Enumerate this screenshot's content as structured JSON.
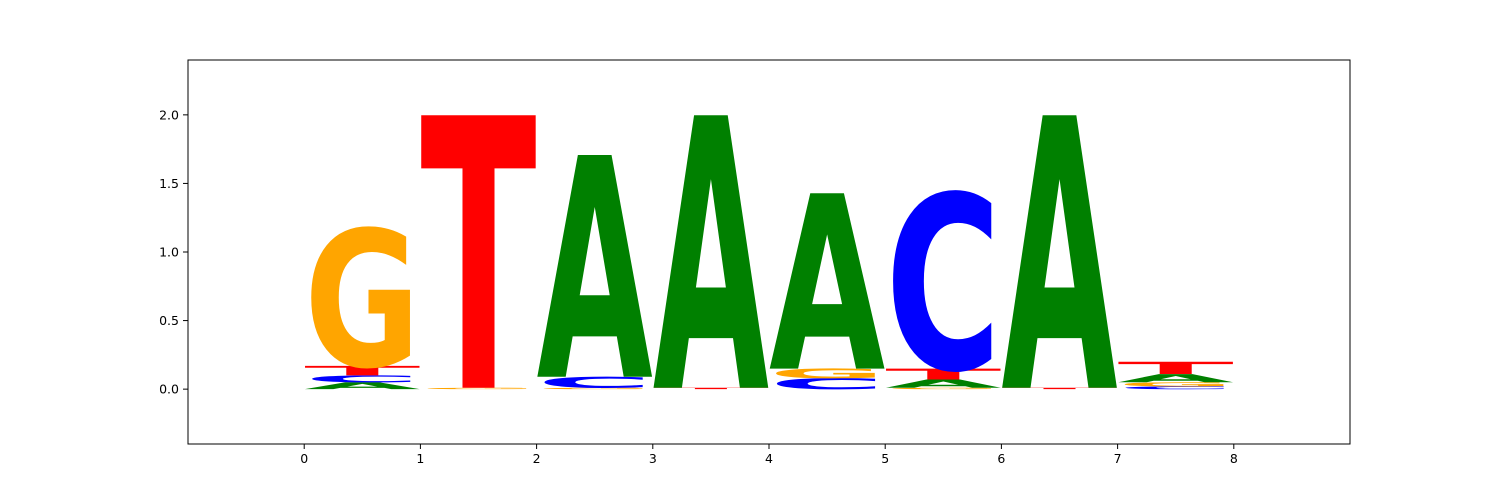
{
  "chart_data": {
    "type": "sequence-logo",
    "title": "",
    "xlabel": "",
    "ylabel": "",
    "xlim": [
      -1,
      9
    ],
    "ylim": [
      -0.4,
      2.4
    ],
    "x_ticks": [
      "0",
      "1",
      "2",
      "3",
      "4",
      "5",
      "6",
      "7",
      "8"
    ],
    "y_ticks": [
      "0.0",
      "0.5",
      "1.0",
      "1.5",
      "2.0"
    ],
    "grid": false,
    "colors": {
      "A": "#008000",
      "C": "#0000ff",
      "G": "#ffa500",
      "T": "#ff0000"
    },
    "positions": [
      {
        "start": 0,
        "letters": [
          {
            "base": "A",
            "height": 0.05
          },
          {
            "base": "C",
            "height": 0.05
          },
          {
            "base": "T",
            "height": 0.07
          },
          {
            "base": "G",
            "height": 1.0
          }
        ]
      },
      {
        "start": 1,
        "letters": [
          {
            "base": "G",
            "height": 0.01
          },
          {
            "base": "T",
            "height": 1.99
          }
        ]
      },
      {
        "start": 2,
        "letters": [
          {
            "base": "G",
            "height": 0.01
          },
          {
            "base": "C",
            "height": 0.08
          },
          {
            "base": "A",
            "height": 1.62
          }
        ]
      },
      {
        "start": 3,
        "letters": [
          {
            "base": "T",
            "height": 0.01
          },
          {
            "base": "A",
            "height": 1.99
          }
        ]
      },
      {
        "start": 4,
        "letters": [
          {
            "base": "C",
            "height": 0.08
          },
          {
            "base": "G",
            "height": 0.07
          },
          {
            "base": "A",
            "height": 1.28
          }
        ]
      },
      {
        "start": 5,
        "letters": [
          {
            "base": "G",
            "height": 0.01
          },
          {
            "base": "A",
            "height": 0.06
          },
          {
            "base": "T",
            "height": 0.08
          },
          {
            "base": "C",
            "height": 1.28
          }
        ]
      },
      {
        "start": 6,
        "letters": [
          {
            "base": "T",
            "height": 0.01
          },
          {
            "base": "A",
            "height": 1.99
          }
        ]
      },
      {
        "start": 7,
        "letters": [
          {
            "base": "C",
            "height": 0.02
          },
          {
            "base": "G",
            "height": 0.03
          },
          {
            "base": "A",
            "height": 0.06
          },
          {
            "base": "T",
            "height": 0.09
          }
        ]
      }
    ]
  }
}
